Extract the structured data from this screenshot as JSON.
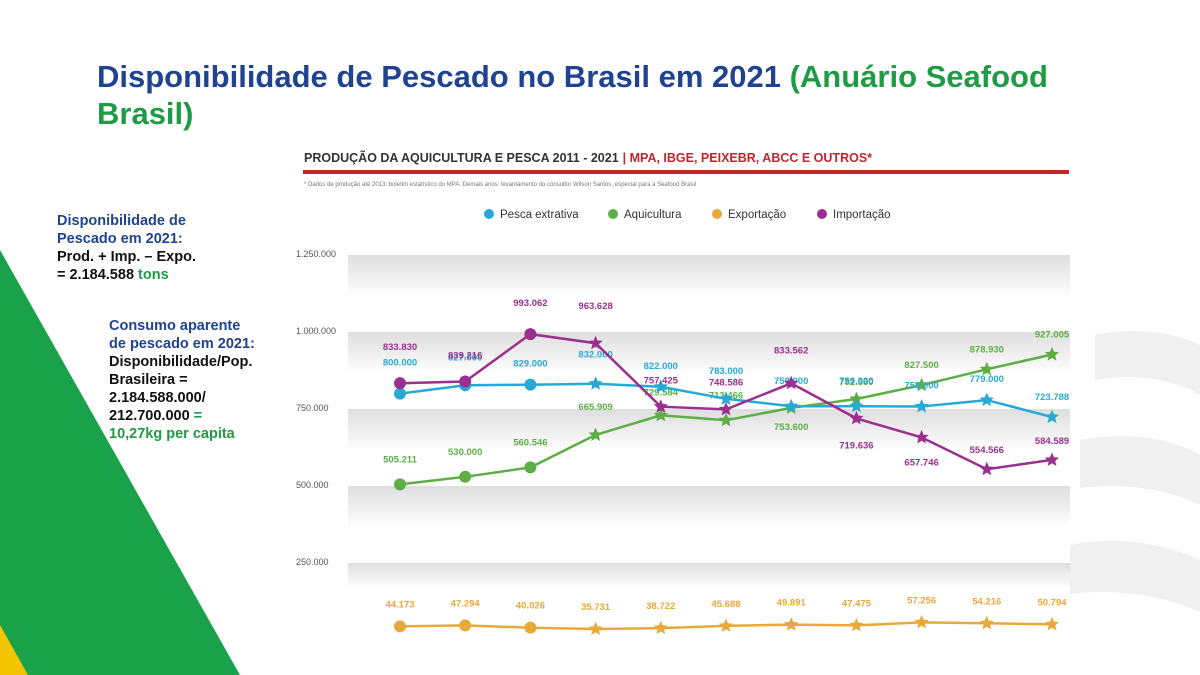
{
  "slide": {
    "title_main": "Disponibilidade de Pescado no Brasil em 2021 ",
    "title_source": "(Anuário Seafood Brasil)",
    "box1": {
      "line1": "Disponibilidade de",
      "line2": "Pescado em 2021:",
      "line3": "Prod. + Imp. – Expo.",
      "line4_value": "= 2.184.588",
      "line4_unit": "tons"
    },
    "box2": {
      "line1": "Consumo aparente",
      "line2": "de pescado em 2021:",
      "line3": "Disponibilidade/Pop.",
      "line4": "Brasileira =",
      "line5": "2.184.588.000/",
      "line6_value": "212.700.000",
      "line6_eq": "=",
      "line7": "10,27kg per capita"
    },
    "colors": {
      "navy": "#1f4390",
      "green": "#1f9a45",
      "chart_rule": "#c0272d"
    }
  },
  "chart_data": {
    "type": "line",
    "title": "PRODUÇÃO DA AQUICULTURA E PESCA 2011 - 2021",
    "title_sources": "| MPA, IBGE, PEIXEBR, ABCC E OUTROS*",
    "footnote": "* Dados de produção até 2013: boletim estatístico do MPA. Demais anos: levantamento do consultor Wilson Santos, especial para a Seafood Brasil",
    "y_ticks": [
      "1.250.000",
      "1.000.000",
      "750.000",
      "500.000",
      "250.000"
    ],
    "ylim": [
      0,
      1250000
    ],
    "points": 11,
    "legend_position": "top",
    "series": [
      {
        "name": "Pesca extrativa",
        "color": "#27a9d6",
        "values": [
          800000,
          827000,
          829000,
          832000,
          822000,
          783000,
          759000,
          759000,
          758000,
          779000,
          723788
        ],
        "labels": [
          "800.000",
          "827.000",
          "829.000",
          "832.000",
          "822.000",
          "783.000",
          "759.000",
          "759.000",
          "758.000",
          "779.000",
          "723.788"
        ]
      },
      {
        "name": "Aquicultura",
        "color": "#5cae45",
        "values": [
          505211,
          530000,
          560546,
          665909,
          729584,
          713466,
          753600,
          782560,
          827500,
          878930,
          927005
        ],
        "labels": [
          "505.211",
          "530.000",
          "560.546",
          "665.909",
          "729.584",
          "713.466",
          "753.600",
          "782.560",
          "827.500",
          "878.930",
          "927.005"
        ]
      },
      {
        "name": "Exportação",
        "color": "#e9a93a",
        "values": [
          44173,
          47294,
          40026,
          35731,
          38722,
          45688,
          49891,
          47475,
          57256,
          54216,
          50794
        ],
        "labels": [
          "44.173",
          "47.294",
          "40.026",
          "35.731",
          "38.722",
          "45.688",
          "49.891",
          "47.475",
          "57.256",
          "54.216",
          "50.794"
        ]
      },
      {
        "name": "Importação",
        "color": "#9b2f8f",
        "values": [
          833830,
          839216,
          993062,
          963628,
          757425,
          748586,
          833562,
          719636,
          657746,
          554566,
          584589
        ],
        "labels": [
          "833.830",
          "839.216",
          "993.062",
          "963.628",
          "757.425",
          "748.586",
          "833.562",
          "719.636",
          "657.746",
          "554.566",
          "584.589"
        ]
      }
    ]
  }
}
